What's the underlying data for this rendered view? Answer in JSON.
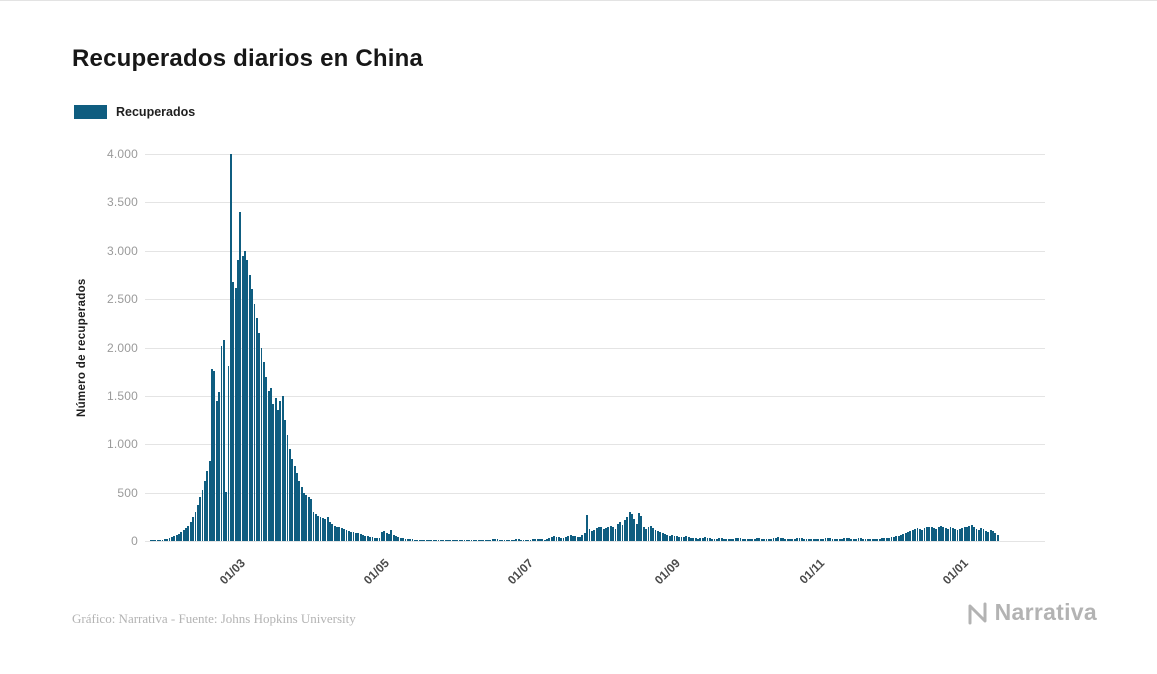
{
  "footer": {
    "credit": "Gráfico: Narrativa - Fuente: Johns Hopkins University"
  },
  "brand": {
    "name": "Narrativa"
  },
  "colors": {
    "bar": "#0f5d80",
    "grid": "#e4e4e4",
    "ytick_text": "#9a9a9a",
    "xtick_text": "#4a4a4a"
  },
  "chart_data": {
    "type": "bar",
    "title": "Recuperados diarios en China",
    "xlabel": "",
    "ylabel": "Número de recuperados",
    "ylim": [
      0,
      4000
    ],
    "grid": "horizontal",
    "legend_position": "top-left",
    "yticks": [
      {
        "value": 0,
        "label": "0"
      },
      {
        "value": 500,
        "label": "500"
      },
      {
        "value": 1000,
        "label": "1.000"
      },
      {
        "value": 1500,
        "label": "1.500"
      },
      {
        "value": 2000,
        "label": "2.000"
      },
      {
        "value": 2500,
        "label": "2.500"
      },
      {
        "value": 3000,
        "label": "3.000"
      },
      {
        "value": 3500,
        "label": "3.500"
      },
      {
        "value": 4000,
        "label": "4.000"
      }
    ],
    "xticks": [
      {
        "index": 39,
        "label": "01/03"
      },
      {
        "index": 100,
        "label": "01/05"
      },
      {
        "index": 161,
        "label": "01/07"
      },
      {
        "index": 223,
        "label": "01/09"
      },
      {
        "index": 284,
        "label": "01/11"
      },
      {
        "index": 345,
        "label": "01/01"
      }
    ],
    "series": [
      {
        "name": "Recuperados",
        "values": [
          0,
          0,
          2,
          3,
          5,
          8,
          10,
          15,
          20,
          25,
          30,
          40,
          50,
          60,
          75,
          90,
          110,
          135,
          160,
          200,
          250,
          300,
          370,
          450,
          530,
          620,
          720,
          830,
          1780,
          1760,
          1450,
          1540,
          2020,
          2080,
          510,
          1810,
          4000,
          2680,
          2620,
          2900,
          3400,
          2950,
          3000,
          2900,
          2750,
          2600,
          2450,
          2300,
          2150,
          2000,
          1850,
          1700,
          1550,
          1580,
          1420,
          1480,
          1350,
          1450,
          1500,
          1250,
          1100,
          950,
          850,
          780,
          700,
          620,
          560,
          500,
          480,
          460,
          430,
          300,
          280,
          260,
          250,
          240,
          230,
          250,
          200,
          180,
          160,
          150,
          140,
          130,
          120,
          110,
          100,
          95,
          90,
          85,
          80,
          70,
          60,
          55,
          50,
          45,
          40,
          35,
          30,
          28,
          90,
          100,
          80,
          70,
          110,
          60,
          50,
          40,
          30,
          28,
          25,
          22,
          20,
          18,
          15,
          14,
          12,
          10,
          10,
          8,
          8,
          10,
          12,
          10,
          8,
          6,
          5,
          5,
          4,
          4,
          3,
          10,
          8,
          6,
          5,
          4,
          5,
          6,
          8,
          10,
          12,
          10,
          8,
          6,
          5,
          10,
          15,
          20,
          18,
          16,
          14,
          12,
          10,
          8,
          10,
          12,
          14,
          16,
          18,
          15,
          12,
          10,
          12,
          15,
          18,
          20,
          25,
          20,
          18,
          15,
          20,
          30,
          40,
          50,
          45,
          40,
          35,
          30,
          40,
          50,
          60,
          55,
          50,
          45,
          40,
          60,
          80,
          270,
          120,
          100,
          110,
          130,
          150,
          140,
          120,
          130,
          150,
          160,
          140,
          120,
          180,
          200,
          170,
          220,
          250,
          300,
          280,
          230,
          180,
          290,
          260,
          150,
          120,
          140,
          160,
          130,
          110,
          100,
          90,
          80,
          70,
          60,
          50,
          60,
          55,
          50,
          45,
          40,
          45,
          50,
          40,
          35,
          30,
          28,
          25,
          30,
          35,
          40,
          35,
          30,
          25,
          20,
          25,
          30,
          28,
          26,
          24,
          22,
          20,
          25,
          30,
          35,
          30,
          25,
          20,
          18,
          16,
          20,
          25,
          30,
          28,
          26,
          24,
          22,
          20,
          25,
          30,
          35,
          40,
          35,
          30,
          25,
          20,
          22,
          24,
          26,
          28,
          30,
          28,
          26,
          24,
          22,
          20,
          18,
          20,
          22,
          24,
          26,
          28,
          30,
          28,
          26,
          24,
          22,
          20,
          25,
          30,
          35,
          30,
          25,
          20,
          25,
          30,
          28,
          26,
          24,
          22,
          20,
          18,
          16,
          20,
          24,
          28,
          30,
          30,
          35,
          40,
          45,
          50,
          55,
          60,
          70,
          80,
          90,
          100,
          110,
          120,
          130,
          120,
          110,
          130,
          140,
          150,
          140,
          130,
          120,
          140,
          160,
          150,
          130,
          120,
          140,
          130,
          120,
          110,
          120,
          130,
          140,
          150,
          160,
          170,
          140,
          120,
          110,
          130,
          120,
          100,
          90,
          110,
          100,
          80,
          60
        ]
      }
    ]
  }
}
